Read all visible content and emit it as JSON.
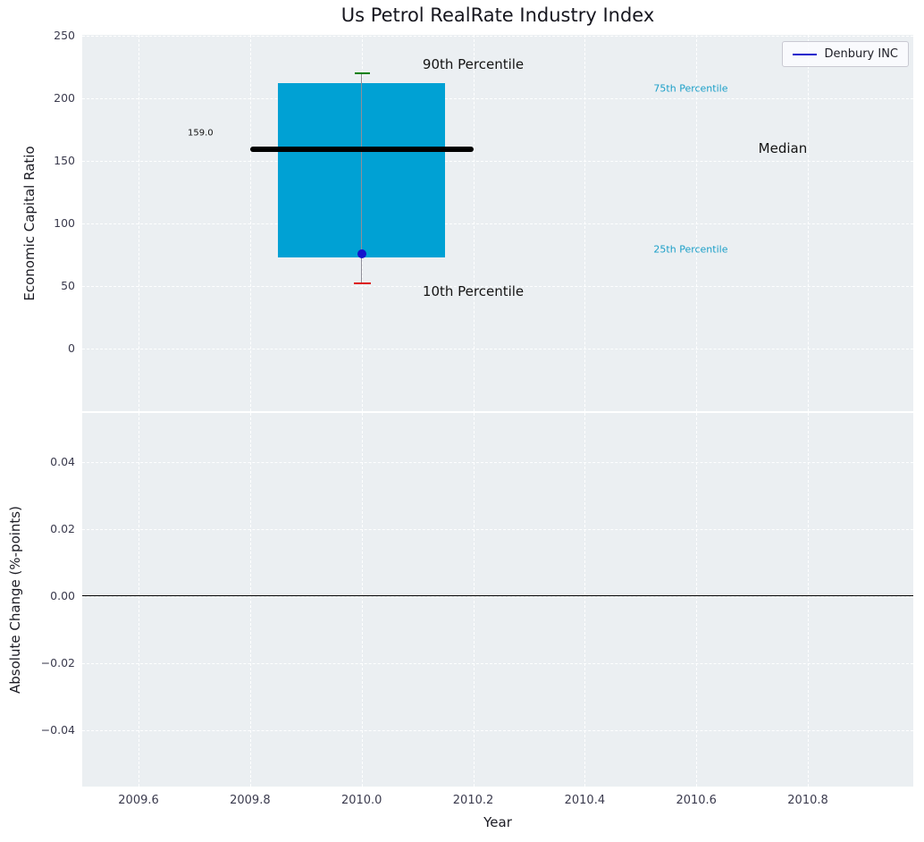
{
  "chart_data": {
    "type": "box",
    "title": "Us Petrol RealRate Industry Index",
    "legend": {
      "label": "Denbury INC",
      "line_color": "#1414cc",
      "position": "upper right"
    },
    "x_axis": {
      "label": "Year",
      "xlim": [
        2009.499,
        2010.989
      ],
      "ticks": [
        {
          "v": 2009.6,
          "label": "2009.6"
        },
        {
          "v": 2009.8,
          "label": "2009.8"
        },
        {
          "v": 2010.0,
          "label": "2010.0"
        },
        {
          "v": 2010.2,
          "label": "2010.2"
        },
        {
          "v": 2010.4,
          "label": "2010.4"
        },
        {
          "v": 2010.6,
          "label": "2010.6"
        },
        {
          "v": 2010.8,
          "label": "2010.8"
        }
      ]
    },
    "top_plot": {
      "ylabel": "Economic Capital Ratio",
      "ylim": [
        -50,
        250.7
      ],
      "grid": "dashed-white",
      "ticks": [
        {
          "v": 0,
          "label": "0"
        },
        {
          "v": 50,
          "label": "50"
        },
        {
          "v": 100,
          "label": "100"
        },
        {
          "v": 150,
          "label": "150"
        },
        {
          "v": 200,
          "label": "200"
        },
        {
          "v": 250,
          "label": "250"
        }
      ],
      "box": {
        "x": 2010.0,
        "box_width": 0.3,
        "median_width": 0.4,
        "cap_width": 0.026,
        "p10": 52,
        "p25": 73,
        "median": 159,
        "p75": 212,
        "p90": 220,
        "company_value": 76,
        "median_value_label": "159.0",
        "colors": {
          "box": "#00a1d4",
          "median": "#000000",
          "whisker": "#8f8f98",
          "cap_top": "#008000",
          "cap_bottom": "#dd1111",
          "marker": "#1414cc"
        }
      },
      "annotations": [
        {
          "text": "90th Percentile",
          "x": 2010.2,
          "y": 227,
          "color": "#141414",
          "size": 15
        },
        {
          "text": "75th Percentile",
          "x": 2010.59,
          "y": 208,
          "color": "#1b9fc8",
          "size": 11
        },
        {
          "text": "Median",
          "x": 2010.755,
          "y": 160,
          "color": "#141414",
          "size": 15
        },
        {
          "text": "25th Percentile",
          "x": 2010.59,
          "y": 79,
          "color": "#1b9fc8",
          "size": 11
        },
        {
          "text": "10th Percentile",
          "x": 2010.2,
          "y": 46,
          "color": "#141414",
          "size": 15
        },
        {
          "text": "159.0",
          "x": 2009.711,
          "y": 172,
          "color": "#141414",
          "size": 10
        }
      ]
    },
    "bottom_plot": {
      "ylabel": "Absolute Change (%-points)",
      "ylim": [
        -0.0568,
        0.0547
      ],
      "grid": "dashed-white",
      "ticks": [
        {
          "v": -0.04,
          "label": "−0.04"
        },
        {
          "v": -0.02,
          "label": "−0.02"
        },
        {
          "v": 0,
          "label": "0.00"
        },
        {
          "v": 0.02,
          "label": "0.02"
        },
        {
          "v": 0.04,
          "label": "0.04"
        }
      ],
      "zero_line": {
        "y": 0,
        "color": "#000000"
      }
    },
    "colors": {
      "plot_bg": "#ebeff2",
      "grid": "#ffffff",
      "tick_label": "#3b3b4e",
      "title": "#17171f"
    }
  }
}
